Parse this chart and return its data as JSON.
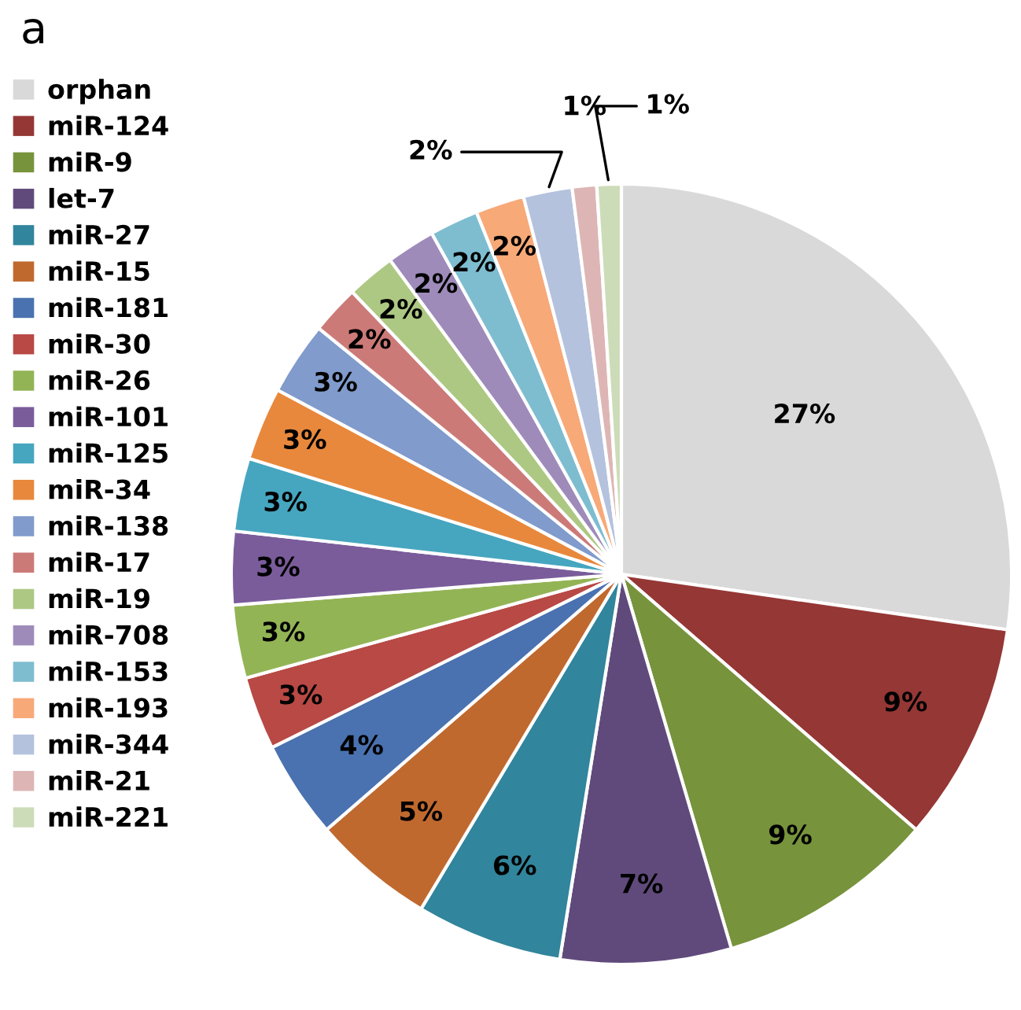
{
  "chart_data": {
    "type": "pie",
    "categories": [
      "orphan",
      "miR-124",
      "miR-9",
      "let-7",
      "miR-27",
      "miR-15",
      "miR-181",
      "miR-30",
      "miR-26",
      "miR-101",
      "miR-125",
      "miR-34",
      "miR-138",
      "miR-17",
      "miR-19",
      "miR-708",
      "miR-153",
      "miR-193",
      "miR-344",
      "miR-21",
      "miR-221"
    ],
    "values": [
      27,
      9,
      9,
      7,
      6,
      5,
      4,
      3,
      3,
      3,
      3,
      3,
      3,
      2,
      2,
      2,
      2,
      2,
      2,
      1,
      1
    ],
    "value_labels": [
      "27%",
      "9%",
      "9%",
      "7%",
      "6%",
      "5%",
      "4%",
      "3%",
      "3%",
      "3%",
      "3%",
      "3%",
      "3%",
      "2%",
      "2%",
      "2%",
      "2%",
      "2%",
      "2%",
      "1%",
      "1%"
    ],
    "colors": [
      "#d9d9d9",
      "#953735",
      "#77933c",
      "#604a7b",
      "#31859c",
      "#c0692f",
      "#4a72b0",
      "#b84945",
      "#93b455",
      "#7a5c9b",
      "#46a6bf",
      "#e8883c",
      "#809bcc",
      "#cc7a78",
      "#adc883",
      "#9e8bba",
      "#7ebdd0",
      "#f7a978",
      "#b4c2de",
      "#deb5b5",
      "#cddcb8"
    ],
    "legend": "left",
    "annotations": [
      "a"
    ]
  }
}
